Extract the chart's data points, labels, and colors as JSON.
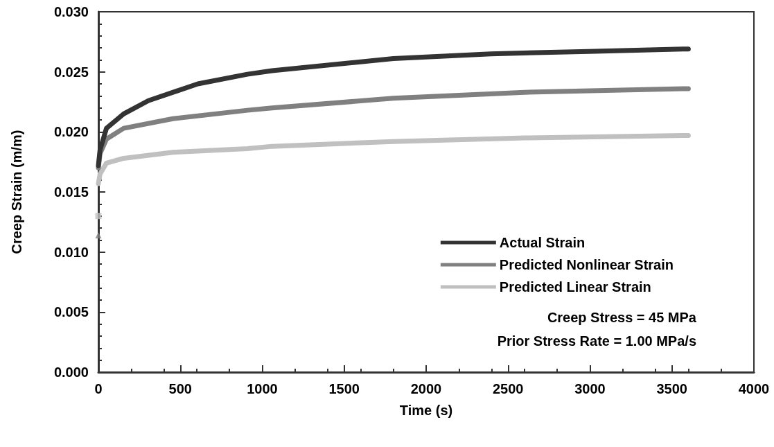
{
  "chart_data": {
    "type": "line",
    "xlabel": "Time (s)",
    "ylabel": "Creep Strain (m/m)",
    "xlim": [
      0,
      4000
    ],
    "xticks": [
      0,
      500,
      1000,
      1500,
      2000,
      2500,
      3000,
      3500,
      4000
    ],
    "ylim": [
      0,
      0.03
    ],
    "yticks": [
      {
        "value": 0,
        "label": "0.000"
      },
      {
        "value": 0.005,
        "label": "0.005"
      },
      {
        "value": 0.01,
        "label": "0.010"
      },
      {
        "value": 0.015,
        "label": "0.015"
      },
      {
        "value": 0.02,
        "label": "0.020"
      },
      {
        "value": 0.025,
        "label": "0.025"
      },
      {
        "value": 0.03,
        "label": "0.030"
      }
    ],
    "grid": false,
    "legend": "right",
    "line_style": "solid",
    "annotations": [
      "Creep Stress = 45 MPa",
      "Prior Stress Rate = 1.00 MPa/s"
    ],
    "series": [
      {
        "name": "Actual Strain",
        "color": "#333333",
        "x": [
          0,
          10,
          49,
          154,
          305,
          607,
          909,
          1060,
          1800,
          2395,
          2991,
          3568,
          3600
        ],
        "values": [
          0.0172,
          0.0185,
          0.0203,
          0.0215,
          0.0226,
          0.024,
          0.0248,
          0.0251,
          0.0261,
          0.0265,
          0.0267,
          0.0269,
          0.0269
        ]
      },
      {
        "name": "Predicted Nonlinear Strain",
        "color": "#808080",
        "x": [
          0,
          10,
          49,
          154,
          455,
          909,
          1060,
          1800,
          2600,
          3568,
          3600
        ],
        "values": [
          0.017,
          0.0182,
          0.0194,
          0.0203,
          0.0211,
          0.0218,
          0.022,
          0.0228,
          0.0233,
          0.0236,
          0.0236
        ]
      },
      {
        "name": "Predicted Linear Strain",
        "color": "#c0c0c0",
        "x": [
          0,
          10,
          49,
          154,
          455,
          909,
          1060,
          1800,
          2600,
          3568,
          3600
        ],
        "values": [
          0.0157,
          0.0165,
          0.0174,
          0.0178,
          0.0183,
          0.0186,
          0.0188,
          0.0192,
          0.0195,
          0.0197,
          0.0197
        ]
      },
      {
        "type": "scatter",
        "color": "#c0c0c0",
        "marker": "square",
        "x": [
          0
        ],
        "values": [
          0.013
        ]
      },
      {
        "type": "scatter",
        "color": "#808080",
        "marker": "triangle",
        "x": [
          0
        ],
        "values": [
          0.0114
        ]
      }
    ]
  }
}
